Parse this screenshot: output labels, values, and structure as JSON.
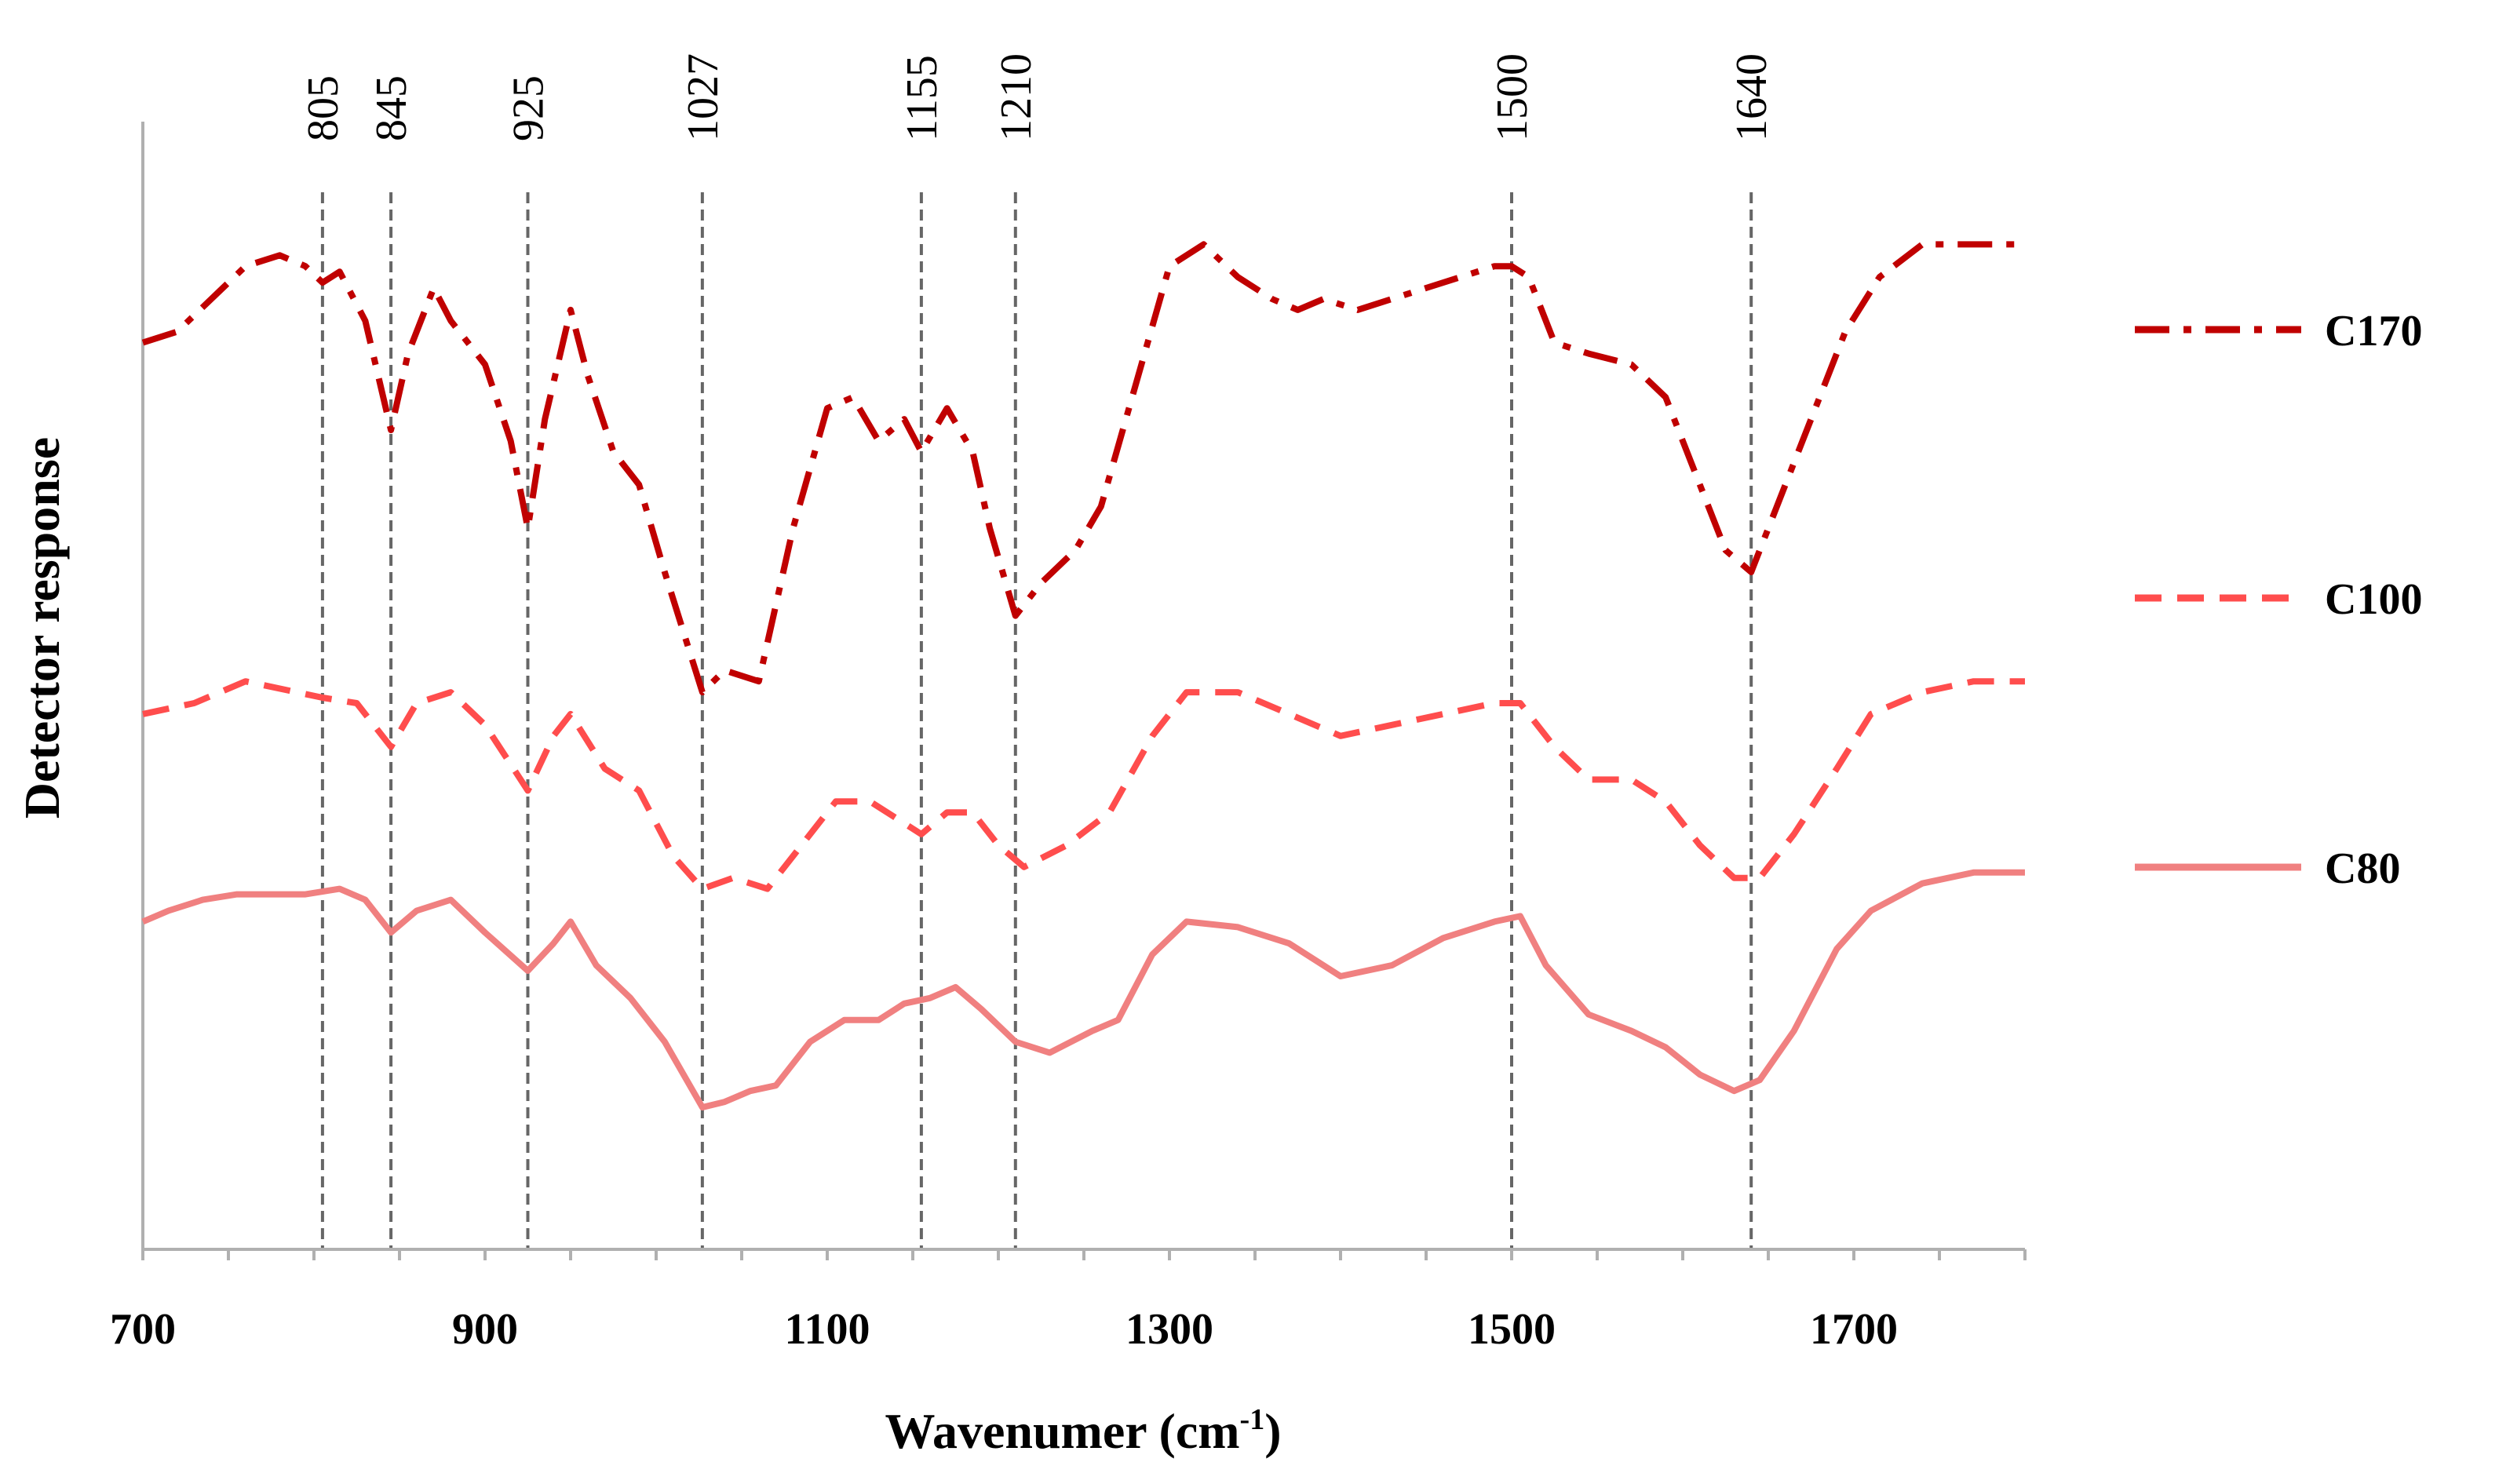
{
  "chart_data": {
    "type": "line",
    "title": "",
    "xlabel": "Wavenumer (cm",
    "xlabel_sup": "-1",
    "xlabel_end": ")",
    "ylabel": "Detector response",
    "xlim": [
      700,
      1800
    ],
    "ylim": [
      0,
      100
    ],
    "y_ticks_shown": false,
    "x_ticks": [
      700,
      900,
      1100,
      1300,
      1500,
      1700
    ],
    "x_tick_labels": [
      "700",
      "900",
      "1100",
      "1300",
      "1500",
      "1700"
    ],
    "peak_lines": [
      805,
      845,
      925,
      1027,
      1155,
      1210,
      1500,
      1640
    ],
    "peak_labels": [
      "805",
      "845",
      "925",
      "1027",
      "1155",
      "1210",
      "1500",
      "1640"
    ],
    "legend_position": "right",
    "series": [
      {
        "name": "C170",
        "color": "#c00000",
        "style": "dashdot",
        "points": [
          [
            700,
            83
          ],
          [
            720,
            84
          ],
          [
            740,
            87
          ],
          [
            760,
            90
          ],
          [
            780,
            91
          ],
          [
            795,
            90
          ],
          [
            805,
            88.5
          ],
          [
            815,
            89.5
          ],
          [
            830,
            85
          ],
          [
            845,
            75
          ],
          [
            855,
            82
          ],
          [
            870,
            88
          ],
          [
            880,
            85
          ],
          [
            900,
            81
          ],
          [
            915,
            74
          ],
          [
            925,
            66
          ],
          [
            935,
            76
          ],
          [
            950,
            86
          ],
          [
            960,
            80
          ],
          [
            975,
            73
          ],
          [
            990,
            70
          ],
          [
            1005,
            62
          ],
          [
            1027,
            51
          ],
          [
            1040,
            53
          ],
          [
            1060,
            52
          ],
          [
            1080,
            66
          ],
          [
            1100,
            77
          ],
          [
            1115,
            78
          ],
          [
            1130,
            74
          ],
          [
            1145,
            76
          ],
          [
            1155,
            73
          ],
          [
            1170,
            77
          ],
          [
            1185,
            73
          ],
          [
            1195,
            66
          ],
          [
            1210,
            58
          ],
          [
            1225,
            61
          ],
          [
            1245,
            64
          ],
          [
            1260,
            68
          ],
          [
            1280,
            79
          ],
          [
            1300,
            90
          ],
          [
            1320,
            92
          ],
          [
            1340,
            89
          ],
          [
            1360,
            87
          ],
          [
            1375,
            86
          ],
          [
            1390,
            87
          ],
          [
            1410,
            86
          ],
          [
            1430,
            87
          ],
          [
            1450,
            88
          ],
          [
            1470,
            89
          ],
          [
            1490,
            90
          ],
          [
            1500,
            90
          ],
          [
            1510,
            89
          ],
          [
            1525,
            83
          ],
          [
            1545,
            82
          ],
          [
            1570,
            81
          ],
          [
            1590,
            78
          ],
          [
            1605,
            72
          ],
          [
            1625,
            64
          ],
          [
            1640,
            62
          ],
          [
            1655,
            68
          ],
          [
            1675,
            76
          ],
          [
            1695,
            84
          ],
          [
            1715,
            89
          ],
          [
            1740,
            92
          ],
          [
            1770,
            92
          ],
          [
            1800,
            92
          ]
        ]
      },
      {
        "name": "C100",
        "color": "#ff4d4d",
        "style": "dashed",
        "points": [
          [
            700,
            49
          ],
          [
            730,
            50
          ],
          [
            760,
            52
          ],
          [
            790,
            51
          ],
          [
            805,
            50.5
          ],
          [
            825,
            50
          ],
          [
            845,
            46
          ],
          [
            860,
            50
          ],
          [
            880,
            51
          ],
          [
            900,
            48
          ],
          [
            925,
            42
          ],
          [
            940,
            47
          ],
          [
            950,
            49
          ],
          [
            970,
            44
          ],
          [
            990,
            42
          ],
          [
            1010,
            36
          ],
          [
            1027,
            33
          ],
          [
            1045,
            34
          ],
          [
            1065,
            33
          ],
          [
            1085,
            37
          ],
          [
            1105,
            41
          ],
          [
            1125,
            41
          ],
          [
            1145,
            39
          ],
          [
            1155,
            38
          ],
          [
            1170,
            40
          ],
          [
            1185,
            40
          ],
          [
            1200,
            37
          ],
          [
            1215,
            35
          ],
          [
            1240,
            37
          ],
          [
            1265,
            40
          ],
          [
            1290,
            47
          ],
          [
            1310,
            51
          ],
          [
            1340,
            51
          ],
          [
            1370,
            49
          ],
          [
            1400,
            47
          ],
          [
            1430,
            48
          ],
          [
            1460,
            49
          ],
          [
            1490,
            50
          ],
          [
            1505,
            50
          ],
          [
            1525,
            46
          ],
          [
            1545,
            43
          ],
          [
            1570,
            43
          ],
          [
            1590,
            41
          ],
          [
            1610,
            37
          ],
          [
            1630,
            34
          ],
          [
            1645,
            34
          ],
          [
            1665,
            38
          ],
          [
            1690,
            44
          ],
          [
            1710,
            49
          ],
          [
            1740,
            51
          ],
          [
            1770,
            52
          ],
          [
            1800,
            52
          ]
        ]
      },
      {
        "name": "C80",
        "color": "#f08080",
        "style": "solid",
        "points": [
          [
            700,
            30
          ],
          [
            715,
            31
          ],
          [
            735,
            32
          ],
          [
            755,
            32.5
          ],
          [
            775,
            32.5
          ],
          [
            795,
            32.5
          ],
          [
            815,
            33
          ],
          [
            830,
            32
          ],
          [
            845,
            29
          ],
          [
            860,
            31
          ],
          [
            880,
            32
          ],
          [
            900,
            29
          ],
          [
            925,
            25.5
          ],
          [
            940,
            28
          ],
          [
            950,
            30
          ],
          [
            965,
            26
          ],
          [
            985,
            23
          ],
          [
            1005,
            19
          ],
          [
            1027,
            13
          ],
          [
            1040,
            13.5
          ],
          [
            1055,
            14.5
          ],
          [
            1070,
            15
          ],
          [
            1090,
            19
          ],
          [
            1110,
            21
          ],
          [
            1130,
            21
          ],
          [
            1145,
            22.5
          ],
          [
            1160,
            23
          ],
          [
            1175,
            24
          ],
          [
            1190,
            22
          ],
          [
            1210,
            19
          ],
          [
            1230,
            18
          ],
          [
            1255,
            20
          ],
          [
            1270,
            21
          ],
          [
            1290,
            27
          ],
          [
            1310,
            30
          ],
          [
            1340,
            29.5
          ],
          [
            1370,
            28
          ],
          [
            1400,
            25
          ],
          [
            1430,
            26
          ],
          [
            1460,
            28.5
          ],
          [
            1490,
            30
          ],
          [
            1505,
            30.5
          ],
          [
            1520,
            26
          ],
          [
            1545,
            21.5
          ],
          [
            1570,
            20
          ],
          [
            1590,
            18.5
          ],
          [
            1610,
            16
          ],
          [
            1630,
            14.5
          ],
          [
            1645,
            15.5
          ],
          [
            1665,
            20
          ],
          [
            1690,
            27.5
          ],
          [
            1710,
            31
          ],
          [
            1740,
            33.5
          ],
          [
            1770,
            34.5
          ],
          [
            1800,
            34.5
          ]
        ]
      }
    ]
  }
}
